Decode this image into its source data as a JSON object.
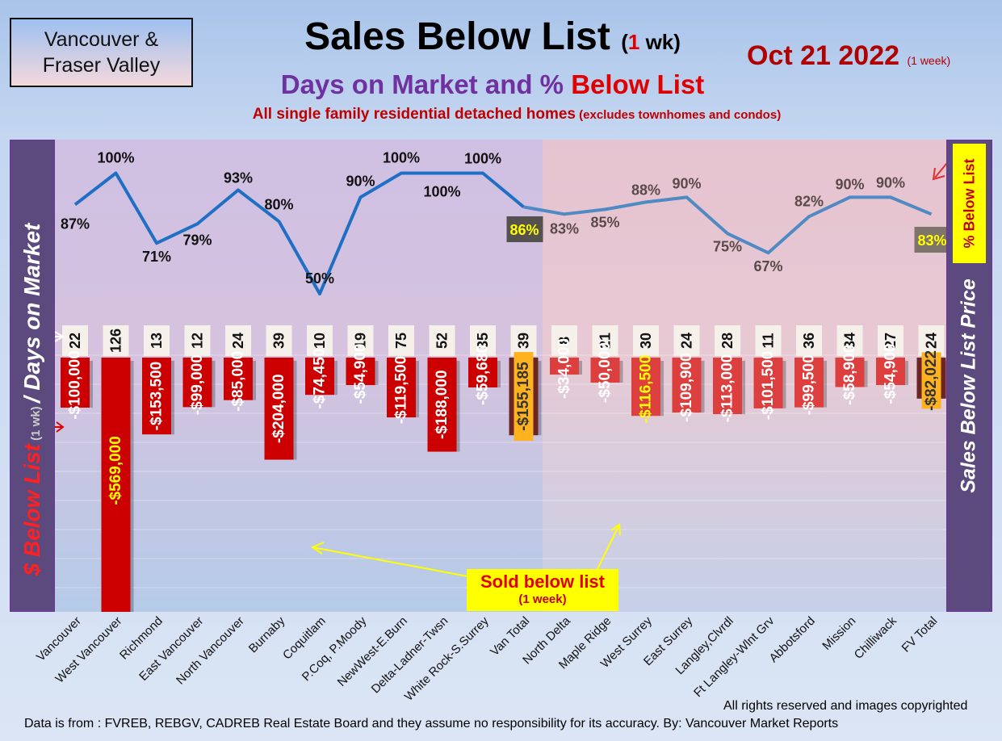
{
  "header": {
    "region": "Vancouver &\nFraser Valley",
    "title_main": "Sales Below List",
    "title_paren_open": "(",
    "title_paren_num": "1",
    "title_paren_rest": " wk)",
    "date": "Oct 21  2022",
    "date_sub": "(1 week)",
    "subtitle_a": "Days on Market and % ",
    "subtitle_b": "Below List",
    "desc_a": "All single family residential detached homes",
    "desc_b": " (excludes townhomes and condos)"
  },
  "left_axis_title": {
    "a": "$ Below List",
    "b": " (1 wk) ",
    "c": "/ Days on Market"
  },
  "right_axis_title": "Sales Below List Price",
  "legend_pct": "% Below List",
  "callout": {
    "line1": "Sold below list",
    "line2": "(1 week)"
  },
  "footer": "Data is from : FVREB, REBGV, CADREB Real Estate Board and they assume no responsibility for its accuracy. By: Vancouver Market Reports",
  "rights": "All rights reserved and  images copyrighted",
  "colors": {
    "bar": "#cc0000",
    "total_bar": "#6b2525",
    "fv_bar": "#dd3f3f",
    "line_van": "#1f6fc4",
    "line_fv": "#4f8ac4",
    "highlight": "#ffff00"
  },
  "chart_data": {
    "type": "bar",
    "categories": [
      "Vancouver",
      "West Vancouver",
      "Richmond",
      "East Vancouver",
      "North Vancouver",
      "Burnaby",
      "Coquitlam",
      "P.Coq, P.Moody",
      "NewWest-E.Burn",
      "Delta-Ladner-Twsn",
      "White Rock-S.Surrey",
      "Van Total",
      "North Delta",
      "Maple Ridge",
      "West Surrey",
      "East Surrey",
      "Langley,Clvrdl",
      "Ft Langley-Wlnt Grv",
      "Abbotsford",
      "Mission",
      "Chilliwack",
      "FV Total"
    ],
    "series": [
      {
        "values": [
          -100000,
          -569000,
          -153500,
          -99000,
          -85000,
          -204000,
          -74450,
          -54900,
          -119500,
          -188000,
          -59680,
          -155185,
          -34000,
          -50000,
          -116500,
          -109900,
          -113000,
          -101500,
          -99500,
          -58900,
          -54900,
          -82022
        ]
      },
      {
        "values": [
          22,
          126,
          13,
          12,
          24,
          39,
          10,
          19,
          75,
          52,
          35,
          39,
          8,
          21,
          30,
          24,
          28,
          11,
          36,
          34,
          27,
          24
        ]
      },
      {
        "values": [
          87,
          100,
          71,
          79,
          93,
          80,
          50,
          90,
          100,
          100,
          100,
          86,
          83,
          85,
          88,
          90,
          75,
          67,
          82,
          90,
          90,
          83
        ]
      }
    ],
    "bar_labels": [
      "-$100,000",
      "-$569,000",
      "-$153,500",
      "-$99,000",
      "-$85,000",
      "-$204,000",
      "-$74,450",
      "-$54,900",
      "-$119,500",
      "-$188,000",
      "-$59,680",
      "-$155,185",
      "-$34,000",
      "-$50,000",
      "-$116,500",
      "-$109,900",
      "-$113,000",
      "-$101,500",
      "-$99,500",
      "-$58,900",
      "-$54,900",
      "-$82,022"
    ],
    "dom_labels": [
      "22",
      "126",
      "13",
      "12",
      "24",
      "39",
      "10",
      "19",
      "75",
      "52",
      "35",
      "39",
      "8",
      "21",
      "30",
      "24",
      "28",
      "11",
      "36",
      "34",
      "27",
      "24"
    ],
    "pct_labels": [
      "87%",
      "100%",
      "71%",
      "79%",
      "93%",
      "80%",
      "50%",
      "90%",
      "100%",
      "100%",
      "100%",
      "86%",
      "83%",
      "85%",
      "88%",
      "90%",
      "75%",
      "67%",
      "82%",
      "90%",
      "90%",
      "83%"
    ],
    "highlighted": [
      "West Vancouver",
      "Van Total",
      "West Surrey",
      "FV Total"
    ]
  }
}
